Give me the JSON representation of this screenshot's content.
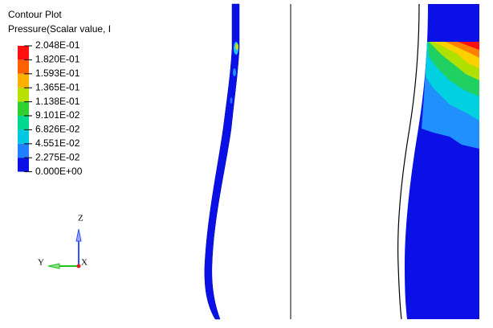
{
  "legend": {
    "title": "Contour Plot",
    "subtitle": "Pressure(Scalar value, I",
    "levels": [
      "2.048E-01",
      "1.820E-01",
      "1.593E-01",
      "1.365E-01",
      "1.138E-01",
      "9.101E-02",
      "6.826E-02",
      "4.551E-02",
      "2.275E-02",
      "0.000E+00"
    ]
  },
  "triad": {
    "z": "Z",
    "y": "Y",
    "x": "X"
  }
}
